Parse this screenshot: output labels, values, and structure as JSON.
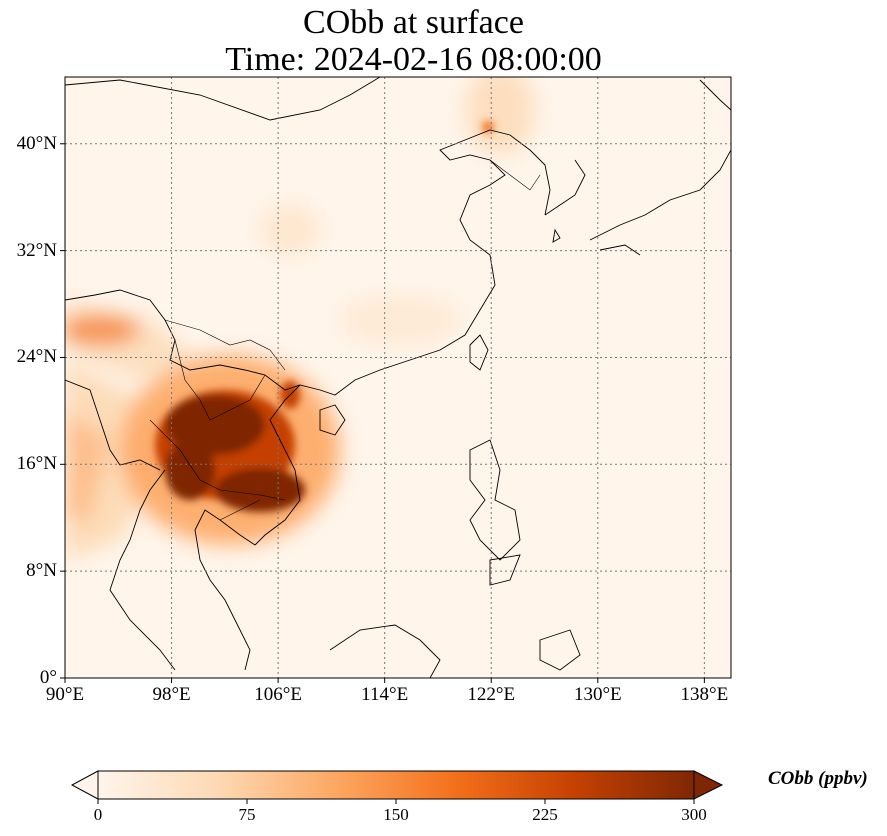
{
  "title": {
    "line1": "CObb at surface",
    "line2": "Time: 2024-02-16 08:00:00"
  },
  "map": {
    "lon_range": [
      90,
      140
    ],
    "lat_range": [
      0,
      45
    ],
    "lat_ticks": [
      {
        "value": 0,
        "label": "0°"
      },
      {
        "value": 8,
        "label": "8°N"
      },
      {
        "value": 16,
        "label": "16°N"
      },
      {
        "value": 24,
        "label": "24°N"
      },
      {
        "value": 32,
        "label": "32°N"
      },
      {
        "value": 40,
        "label": "40°N"
      }
    ],
    "lon_ticks": [
      {
        "value": 90,
        "label": "90°E"
      },
      {
        "value": 98,
        "label": "98°E"
      },
      {
        "value": 106,
        "label": "106°E"
      },
      {
        "value": 114,
        "label": "114°E"
      },
      {
        "value": 122,
        "label": "122°E"
      },
      {
        "value": 130,
        "label": "130°E"
      },
      {
        "value": 138,
        "label": "138°E"
      }
    ],
    "gridlines": true
  },
  "colorbar": {
    "label": "CObb (ppbv)",
    "min": 0,
    "max": 300,
    "extend": "both",
    "ticks": [
      "0",
      "75",
      "150",
      "225",
      "300"
    ],
    "colors": [
      "#fff5eb",
      "#fdd9b4",
      "#fda762",
      "#f3701b",
      "#c54102",
      "#7f2704"
    ]
  }
}
